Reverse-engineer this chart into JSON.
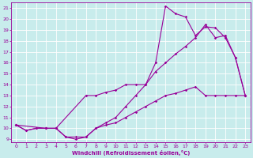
{
  "background_color": "#c8ecec",
  "line_color": "#990099",
  "grid_color": "#ffffff",
  "xlabel": "Windchill (Refroidissement éolien,°C)",
  "xlim": [
    -0.5,
    23.5
  ],
  "ylim": [
    8.7,
    21.5
  ],
  "xticks": [
    0,
    1,
    2,
    3,
    4,
    5,
    6,
    7,
    8,
    9,
    10,
    11,
    12,
    13,
    14,
    15,
    16,
    17,
    18,
    19,
    20,
    21,
    22,
    23
  ],
  "yticks": [
    9,
    10,
    11,
    12,
    13,
    14,
    15,
    16,
    17,
    18,
    19,
    20,
    21
  ],
  "line1_x": [
    0,
    1,
    2,
    3,
    4,
    5,
    6,
    7,
    8,
    9,
    10,
    11,
    12,
    13,
    14,
    15,
    16,
    17,
    18,
    19,
    20,
    21,
    22,
    23
  ],
  "line1_y": [
    10.3,
    9.8,
    10.0,
    10.0,
    10.0,
    9.2,
    9.2,
    9.2,
    10.0,
    10.3,
    10.5,
    11.0,
    11.5,
    12.0,
    12.5,
    13.0,
    13.2,
    13.5,
    13.8,
    13.0,
    13.0,
    13.0,
    13.0,
    13.0
  ],
  "line2_x": [
    0,
    1,
    2,
    3,
    4,
    5,
    6,
    7,
    8,
    9,
    10,
    11,
    12,
    13,
    14,
    15,
    16,
    17,
    18,
    19,
    20,
    21,
    22,
    23
  ],
  "line2_y": [
    10.3,
    9.8,
    10.0,
    10.0,
    10.0,
    9.2,
    9.0,
    9.2,
    10.0,
    10.5,
    11.0,
    12.0,
    13.0,
    14.0,
    15.2,
    16.0,
    16.8,
    17.5,
    18.3,
    19.5,
    18.3,
    18.5,
    16.5,
    13.0
  ],
  "line3_x": [
    0,
    3,
    4,
    7,
    8,
    9,
    10,
    11,
    12,
    13,
    14,
    15,
    16,
    17,
    18,
    19,
    20,
    21,
    22,
    23
  ],
  "line3_y": [
    10.3,
    10.0,
    10.0,
    13.0,
    13.0,
    13.3,
    13.5,
    14.0,
    14.0,
    14.0,
    16.0,
    21.2,
    20.5,
    20.2,
    18.5,
    19.3,
    19.2,
    18.3,
    16.5,
    13.0
  ],
  "marker": "D",
  "markersize": 1.8,
  "linewidth": 0.8,
  "xlabel_fontsize": 5.0,
  "tick_fontsize": 4.5
}
